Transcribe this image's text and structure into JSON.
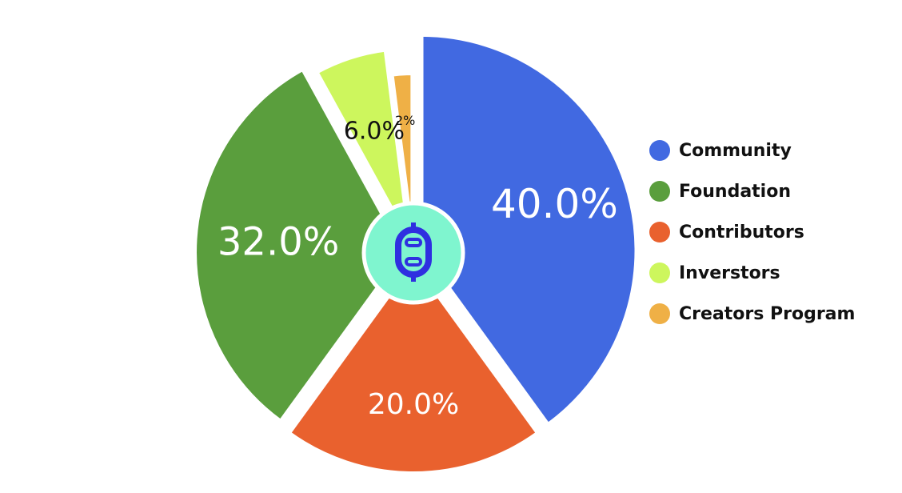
{
  "chart_data": {
    "type": "pie",
    "categories": [
      "Community",
      "Foundation",
      "Contributors",
      "Inverstors",
      "Creators Program"
    ],
    "values": [
      40,
      32,
      20,
      6,
      2
    ],
    "value_labels": [
      "40.0%",
      "32.0%",
      "20.0%",
      "6.0%",
      "2%"
    ],
    "colors": [
      "#4169e1",
      "#5a9e3d",
      "#e9612e",
      "#cdf65d",
      "#efb046"
    ],
    "legend": "right"
  }
}
